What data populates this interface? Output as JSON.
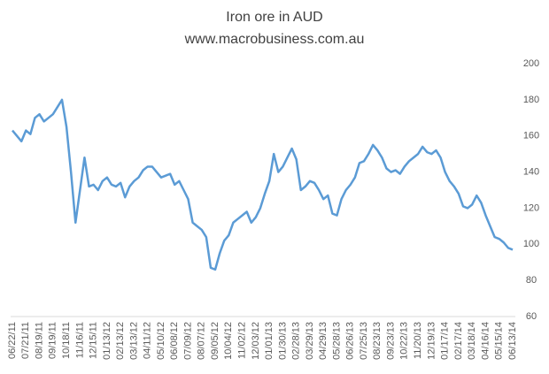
{
  "chart_data": {
    "type": "line",
    "title": "Iron ore in AUD",
    "subtitle": "www.macrobusiness.com.au",
    "categories": [
      "06/22/11",
      null,
      null,
      "07/21/11",
      null,
      null,
      "08/19/11",
      null,
      null,
      "09/19/11",
      null,
      null,
      "10/18/11",
      null,
      null,
      "11/16/11",
      null,
      null,
      "12/15/11",
      null,
      null,
      "01/13/12",
      null,
      null,
      "02/13/12",
      null,
      null,
      "03/13/12",
      null,
      null,
      "04/11/12",
      null,
      null,
      "05/10/12",
      null,
      null,
      "06/08/12",
      null,
      null,
      "07/09/12",
      null,
      null,
      "08/07/12",
      null,
      null,
      "09/05/12",
      null,
      null,
      "10/04/12",
      null,
      null,
      "11/02/12",
      null,
      null,
      "12/03/12",
      null,
      null,
      "01/01/13",
      null,
      null,
      "01/30/13",
      null,
      null,
      "02/28/13",
      null,
      null,
      "03/29/13",
      null,
      null,
      "04/29/13",
      null,
      null,
      "05/28/13",
      null,
      null,
      "06/26/13",
      null,
      null,
      "07/25/13",
      null,
      null,
      "08/23/13",
      null,
      null,
      "09/23/13",
      null,
      null,
      "10/22/13",
      null,
      null,
      "11/20/13",
      null,
      null,
      "12/19/13",
      null,
      null,
      "01/17/14",
      null,
      null,
      "02/17/14",
      null,
      null,
      "03/18/14",
      null,
      null,
      "04/16/14",
      null,
      null,
      "05/15/14",
      null,
      null,
      "06/13/14"
    ],
    "series": [
      {
        "name": "Iron ore in AUD",
        "color": "#5b9bd5",
        "values": [
          163,
          160,
          157,
          163,
          161,
          170,
          172,
          168,
          170,
          172,
          176,
          180,
          165,
          140,
          112,
          130,
          148,
          132,
          133,
          130,
          135,
          137,
          133,
          132,
          134,
          126,
          132,
          135,
          137,
          141,
          143,
          143,
          140,
          137,
          138,
          139,
          133,
          135,
          130,
          125,
          112,
          110,
          108,
          104,
          87,
          86,
          95,
          102,
          105,
          112,
          114,
          116,
          118,
          112,
          115,
          120,
          128,
          135,
          150,
          140,
          143,
          148,
          153,
          147,
          130,
          132,
          135,
          134,
          130,
          125,
          127,
          117,
          116,
          125,
          130,
          133,
          137,
          145,
          146,
          150,
          155,
          152,
          148,
          142,
          140,
          141,
          139,
          143,
          146,
          148,
          150,
          154,
          151,
          150,
          152,
          148,
          140,
          135,
          132,
          128,
          121,
          120,
          122,
          127,
          123,
          116,
          110,
          104,
          103,
          101,
          98,
          97
        ]
      }
    ],
    "ylim": [
      60,
      200
    ],
    "yticks": [
      60,
      80,
      100,
      120,
      140,
      160,
      180,
      200
    ],
    "grid": false
  }
}
